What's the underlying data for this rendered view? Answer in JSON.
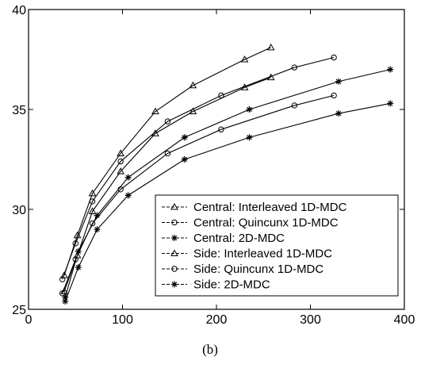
{
  "chart_data": {
    "type": "line",
    "xlim": [
      0,
      400
    ],
    "ylim": [
      25,
      40
    ],
    "x_ticks": [
      "0",
      "100",
      "200",
      "300",
      "400"
    ],
    "y_ticks": [
      "25",
      "30",
      "35",
      "40"
    ],
    "grid": false,
    "legend_position": "bottom-right",
    "caption": "(b)",
    "series": [
      {
        "name": "Central: Interleaved 1D-MDC",
        "marker": "triangle",
        "x": [
          38,
          52,
          68,
          98,
          135,
          175,
          230,
          258
        ],
        "y": [
          26.7,
          28.7,
          30.8,
          32.8,
          34.9,
          36.2,
          37.5,
          38.1
        ]
      },
      {
        "name": "Central: Quincunx 1D-MDC",
        "marker": "circle",
        "x": [
          36,
          50,
          68,
          98,
          148,
          205,
          283,
          325
        ],
        "y": [
          26.5,
          28.3,
          30.4,
          32.4,
          34.4,
          35.7,
          37.1,
          37.6
        ]
      },
      {
        "name": "Central: 2D-MDC",
        "marker": "star",
        "x": [
          39,
          53,
          73,
          106,
          166,
          235,
          330,
          385
        ],
        "y": [
          25.6,
          27.9,
          29.7,
          31.6,
          33.6,
          35.0,
          36.4,
          37.0
        ]
      },
      {
        "name": "Side: Interleaved 1D-MDC",
        "marker": "triangle",
        "x": [
          38,
          52,
          68,
          98,
          135,
          175,
          230,
          258
        ],
        "y": [
          25.9,
          27.7,
          29.9,
          31.9,
          33.8,
          34.9,
          36.1,
          36.6
        ]
      },
      {
        "name": "Side: Quincunx 1D-MDC",
        "marker": "circle",
        "x": [
          36,
          50,
          68,
          98,
          148,
          205,
          283,
          325
        ],
        "y": [
          25.8,
          27.5,
          29.3,
          31.0,
          32.8,
          34.0,
          35.2,
          35.7
        ]
      },
      {
        "name": "Side: 2D-MDC",
        "marker": "star",
        "x": [
          39,
          53,
          73,
          106,
          166,
          235,
          330,
          385
        ],
        "y": [
          25.4,
          27.1,
          29.0,
          30.7,
          32.5,
          33.6,
          34.8,
          35.3
        ]
      }
    ]
  }
}
